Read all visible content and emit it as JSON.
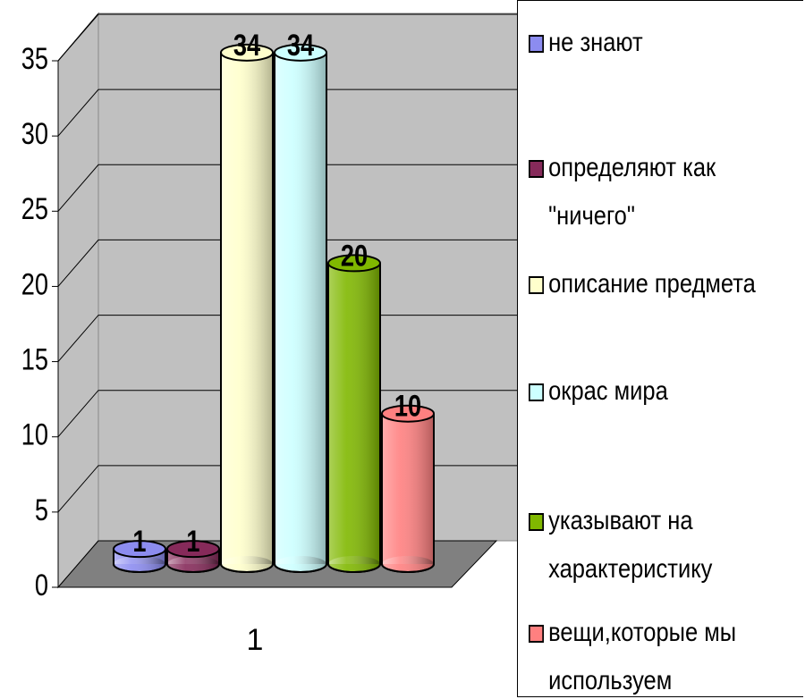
{
  "chart_data": {
    "type": "bar",
    "style": "3d-cylinder",
    "categories": [
      "1"
    ],
    "series": [
      {
        "name": "не знают",
        "color": "#8c8cf0",
        "values": [
          1
        ]
      },
      {
        "name": "определяют как \"ничего\"",
        "color": "#862a5a",
        "values": [
          1
        ]
      },
      {
        "name": "описание предмета",
        "color": "#ffffcc",
        "values": [
          34
        ]
      },
      {
        "name": "окрас мира",
        "color": "#ccffff",
        "values": [
          34
        ]
      },
      {
        "name": "указывают на характеристику",
        "color": "#80b800",
        "values": [
          20
        ]
      },
      {
        "name": "вещи,которые мы используем",
        "color": "#ff8080",
        "values": [
          10
        ]
      }
    ],
    "ylim": [
      0,
      35
    ],
    "yticks": [
      0,
      5,
      10,
      15,
      20,
      25,
      30,
      35
    ],
    "grid": true,
    "legend": "right",
    "data_labels": true
  }
}
